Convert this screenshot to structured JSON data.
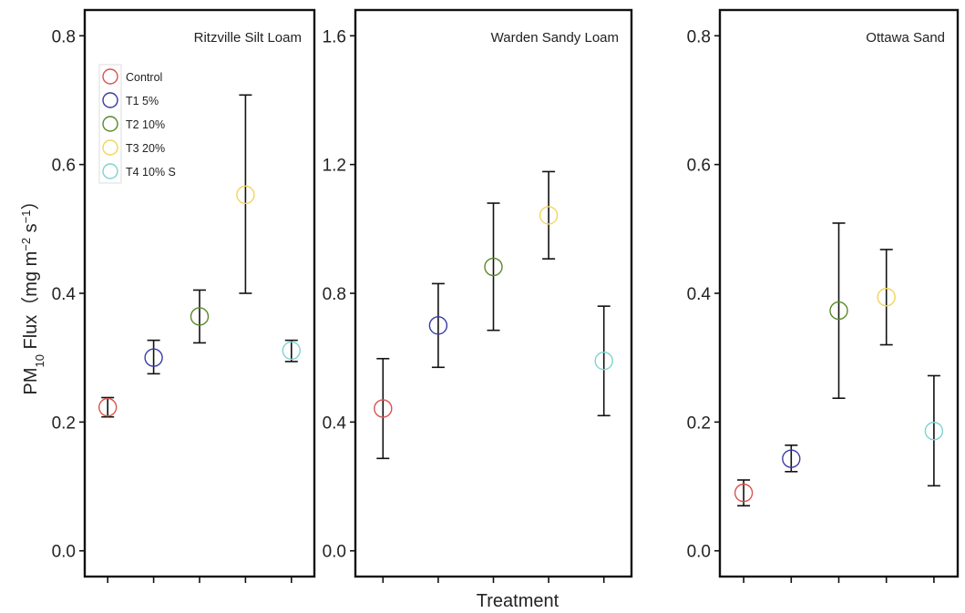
{
  "chart_data": {
    "type": "scatter",
    "xlabel": "Treatment",
    "ylabel": {
      "main": "PM",
      "sub": "10",
      "rest": " Flux（mg m",
      "sup1": "−2",
      "mid": " s",
      "sup2": "−1",
      "end": "）"
    },
    "legend": {
      "placement": "top-left (first panel)",
      "entries": [
        {
          "name": "Control",
          "color": "#d9534f"
        },
        {
          "name": "T1 5%",
          "color": "#3a3aa8"
        },
        {
          "name": "T2 10%",
          "color": "#5a8a2a"
        },
        {
          "name": "T3 20%",
          "color": "#f2d65a"
        },
        {
          "name": "T4 10% S",
          "color": "#7fd3cf"
        }
      ]
    },
    "panels": [
      {
        "title": "Ritzville Silt Loam",
        "ylim": [
          -0.04,
          0.84
        ],
        "yticks": [
          "0.0",
          "0.2",
          "0.4",
          "0.6",
          "0.8"
        ],
        "ytick_values": [
          0.0,
          0.2,
          0.4,
          0.6,
          0.8
        ],
        "points": [
          {
            "treatment": "Control",
            "mean": 0.223,
            "low": 0.208,
            "high": 0.238
          },
          {
            "treatment": "T1 5%",
            "mean": 0.3,
            "low": 0.275,
            "high": 0.327
          },
          {
            "treatment": "T2 10%",
            "mean": 0.364,
            "low": 0.323,
            "high": 0.405
          },
          {
            "treatment": "T3 20%",
            "mean": 0.553,
            "low": 0.4,
            "high": 0.708
          },
          {
            "treatment": "T4 10% S",
            "mean": 0.311,
            "low": 0.294,
            "high": 0.327
          }
        ]
      },
      {
        "title": "Warden Sandy Loam",
        "ylim": [
          -0.08,
          1.68
        ],
        "yticks": [
          "0.0",
          "0.4",
          "0.8",
          "1.2",
          "1.6"
        ],
        "ytick_values": [
          0.0,
          0.4,
          0.8,
          1.2,
          1.6
        ],
        "points": [
          {
            "treatment": "Control",
            "mean": 0.442,
            "low": 0.287,
            "high": 0.597
          },
          {
            "treatment": "T1 5%",
            "mean": 0.7,
            "low": 0.57,
            "high": 0.83
          },
          {
            "treatment": "T2 10%",
            "mean": 0.882,
            "low": 0.685,
            "high": 1.08
          },
          {
            "treatment": "T3 20%",
            "mean": 1.042,
            "low": 0.907,
            "high": 1.178
          },
          {
            "treatment": "T4 10% S",
            "mean": 0.59,
            "low": 0.42,
            "high": 0.76
          }
        ]
      },
      {
        "title": "Ottawa Sand",
        "ylim": [
          -0.04,
          0.84
        ],
        "yticks": [
          "0.0",
          "0.2",
          "0.4",
          "0.6",
          "0.8"
        ],
        "ytick_values": [
          0.0,
          0.2,
          0.4,
          0.6,
          0.8
        ],
        "points": [
          {
            "treatment": "Control",
            "mean": 0.09,
            "low": 0.07,
            "high": 0.11
          },
          {
            "treatment": "T1 5%",
            "mean": 0.143,
            "low": 0.123,
            "high": 0.164
          },
          {
            "treatment": "T2 10%",
            "mean": 0.373,
            "low": 0.237,
            "high": 0.509
          },
          {
            "treatment": "T3 20%",
            "mean": 0.394,
            "low": 0.32,
            "high": 0.468
          },
          {
            "treatment": "T4 10% S",
            "mean": 0.186,
            "low": 0.101,
            "high": 0.272
          }
        ]
      }
    ]
  }
}
